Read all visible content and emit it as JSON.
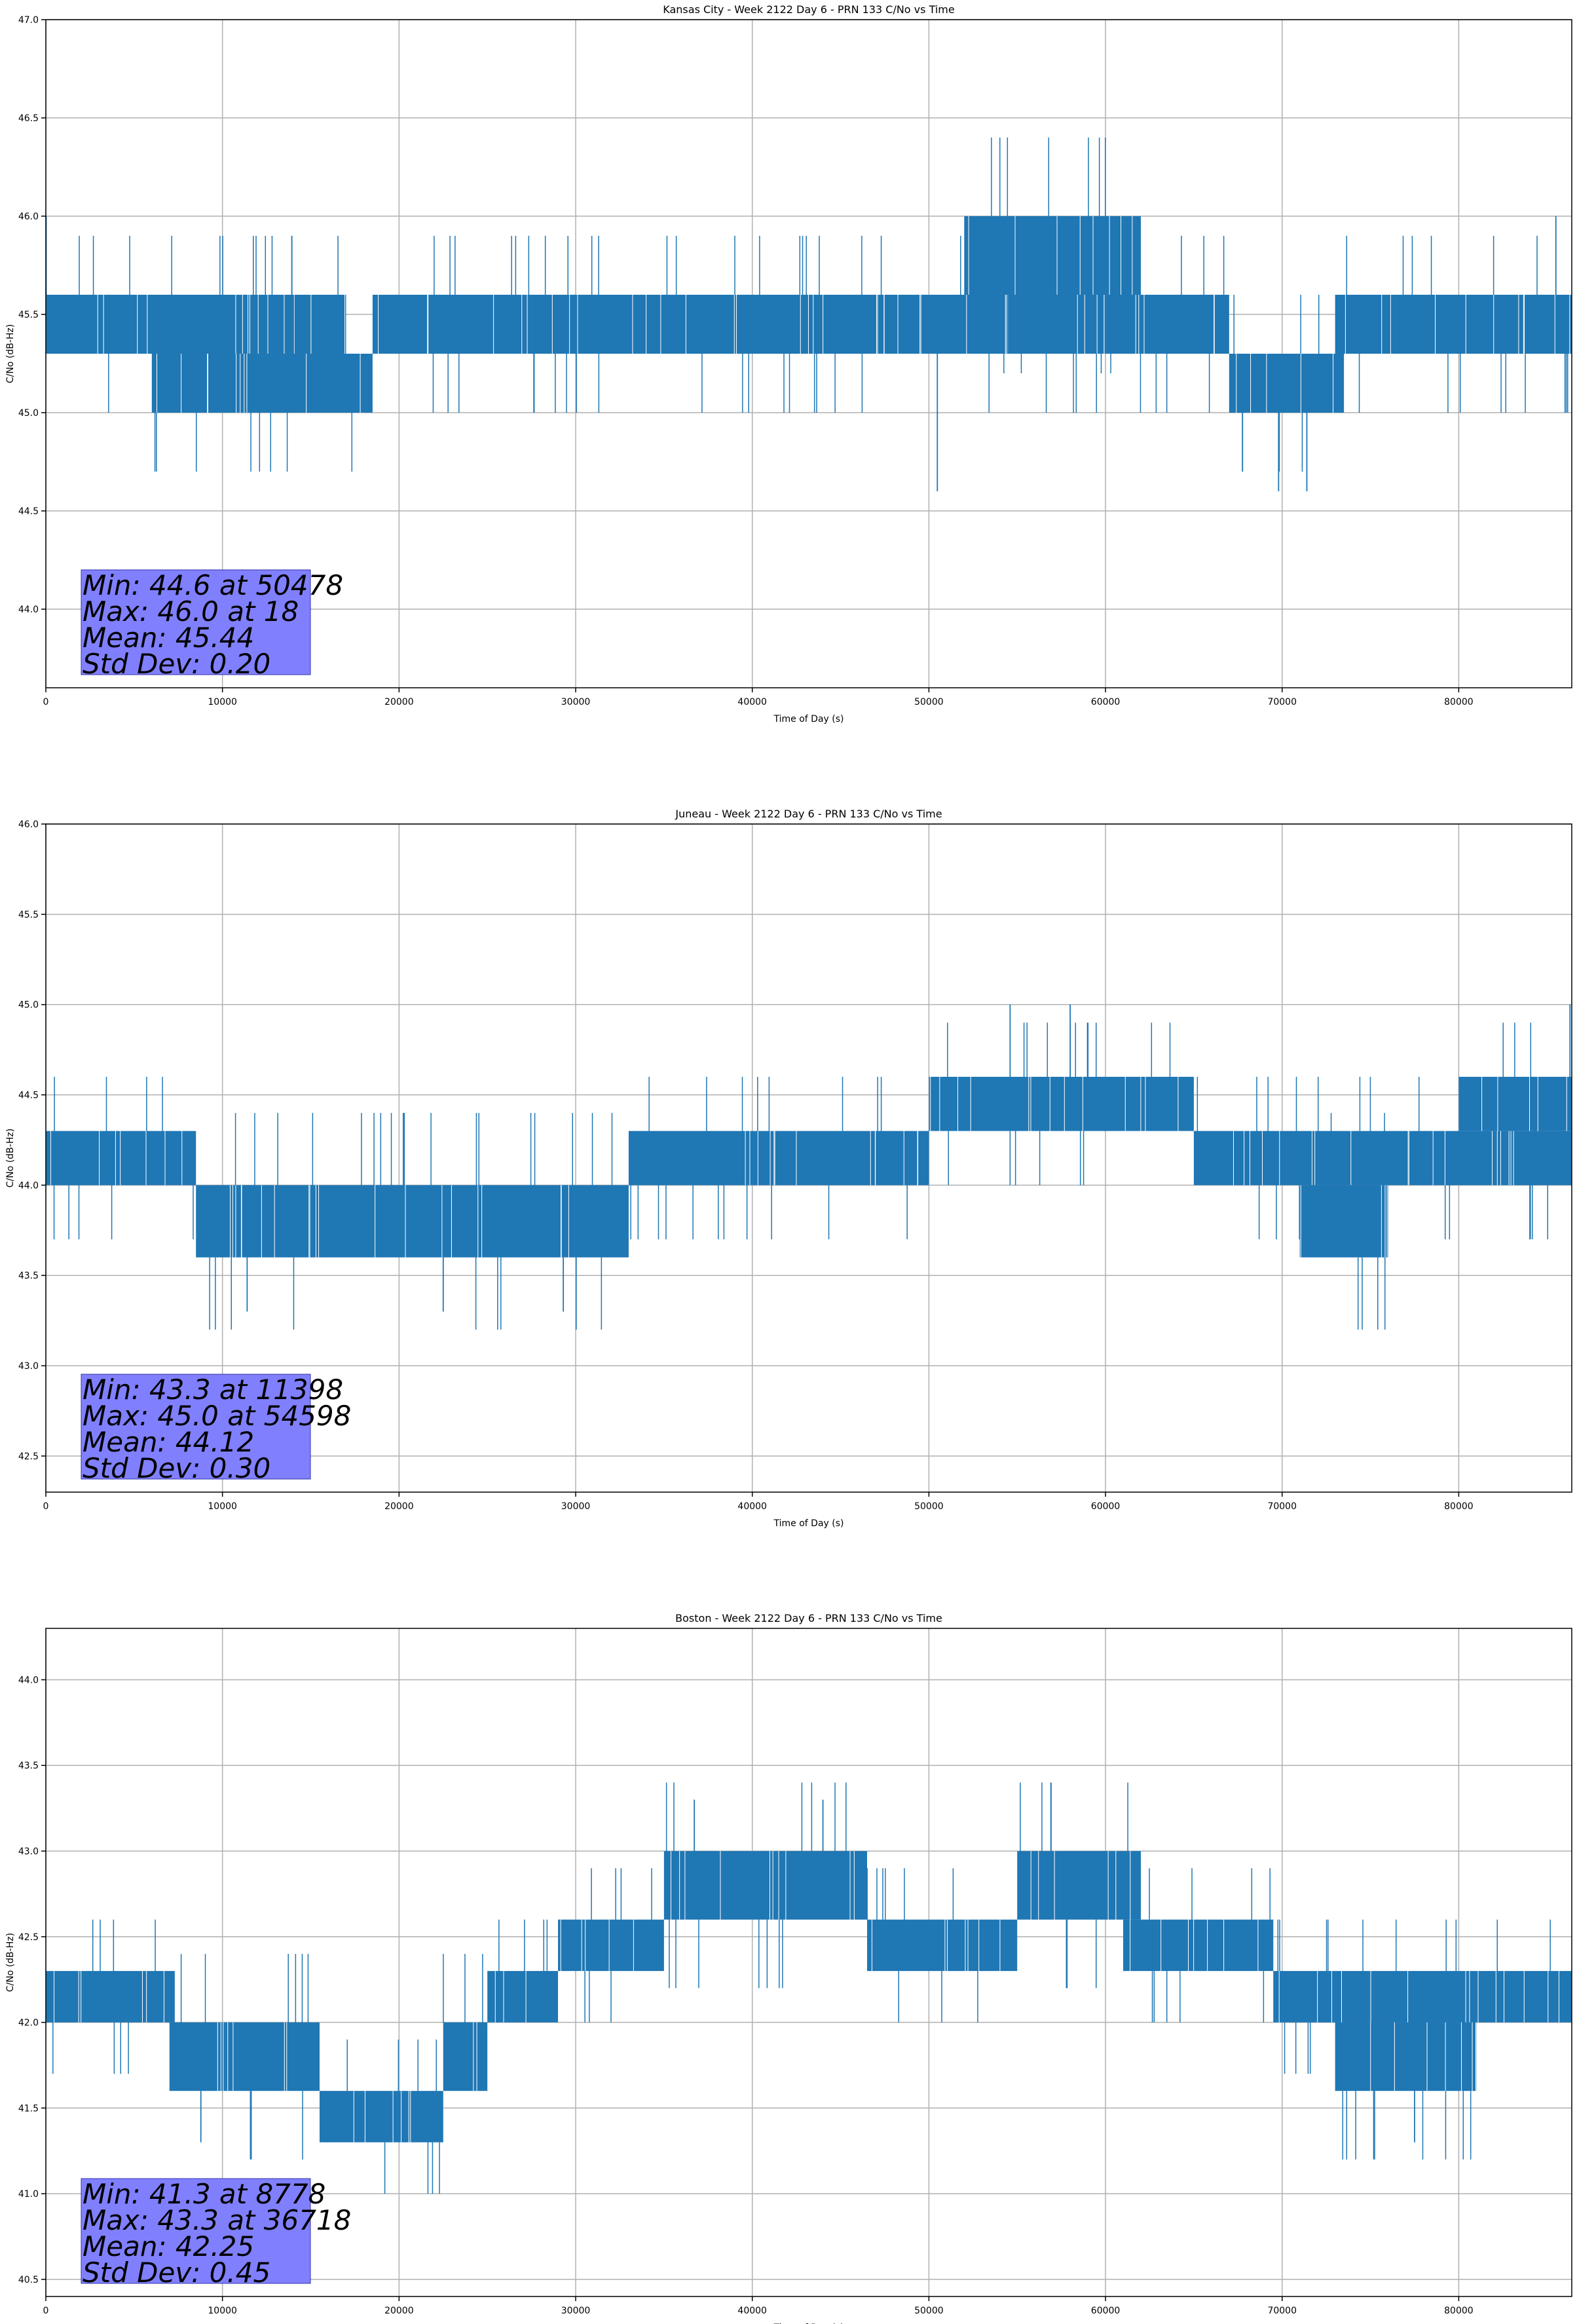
{
  "colors": {
    "series": "#1f77b4",
    "stats_box_fill": "#8080ff",
    "stats_box_edge": "#3333aa",
    "grid": "#b0b0b0"
  },
  "chart_data": [
    {
      "type": "line",
      "title": "Kansas City - Week 2122 Day 6 - PRN 133 C/No vs Time",
      "xlabel": "Time of Day (s)",
      "ylabel": "C/No (dB-Hz)",
      "xlim": [
        0,
        86400
      ],
      "ylim": [
        43.6,
        47.0
      ],
      "xticks": [
        0,
        10000,
        20000,
        30000,
        40000,
        50000,
        60000,
        70000,
        80000
      ],
      "yticks": [
        44.0,
        44.5,
        45.0,
        45.5,
        46.0,
        46.5,
        47.0
      ],
      "grid": true,
      "stats": [
        "Min: 44.6 at 50478",
        "Max: 46.0 at 18",
        "Mean: 45.44",
        "Std Dev: 0.20"
      ],
      "bands": [
        {
          "x0": 0,
          "x1": 17000,
          "lo": 45.3,
          "hi": 45.6
        },
        {
          "x0": 6000,
          "x1": 18500,
          "lo": 45.0,
          "hi": 45.3
        },
        {
          "x0": 18500,
          "x1": 54500,
          "lo": 45.3,
          "hi": 45.6
        },
        {
          "x0": 54500,
          "x1": 67000,
          "lo": 45.3,
          "hi": 45.6
        },
        {
          "x0": 52000,
          "x1": 62000,
          "lo": 45.6,
          "hi": 46.0
        },
        {
          "x0": 67000,
          "x1": 73500,
          "lo": 45.0,
          "hi": 45.3
        },
        {
          "x0": 73000,
          "x1": 86400,
          "lo": 45.3,
          "hi": 45.6
        }
      ],
      "spikes": [
        {
          "x": 50478,
          "y": 44.6
        },
        {
          "x": 69800,
          "y": 44.6
        },
        {
          "x": 71400,
          "y": 44.6
        },
        {
          "x": 18,
          "y": 46.0
        },
        {
          "x": 85500,
          "y": 46.0
        }
      ]
    },
    {
      "type": "line",
      "title": "Juneau - Week 2122 Day 6 - PRN 133 C/No vs Time",
      "xlabel": "Time of Day (s)",
      "ylabel": "C/No (dB-Hz)",
      "xlim": [
        0,
        86400
      ],
      "ylim": [
        42.3,
        46.0
      ],
      "xticks": [
        0,
        10000,
        20000,
        30000,
        40000,
        50000,
        60000,
        70000,
        80000
      ],
      "yticks": [
        42.5,
        43.0,
        43.5,
        44.0,
        44.5,
        45.0,
        45.5,
        46.0
      ],
      "grid": true,
      "stats": [
        "Min: 43.3 at 11398",
        "Max: 45.0 at 54598",
        "Mean: 44.12",
        "Std Dev: 0.30"
      ],
      "bands": [
        {
          "x0": 0,
          "x1": 8500,
          "lo": 44.0,
          "hi": 44.3
        },
        {
          "x0": 8500,
          "x1": 33000,
          "lo": 43.6,
          "hi": 44.0
        },
        {
          "x0": 33000,
          "x1": 50000,
          "lo": 44.0,
          "hi": 44.3
        },
        {
          "x0": 50000,
          "x1": 65000,
          "lo": 44.3,
          "hi": 44.6
        },
        {
          "x0": 65000,
          "x1": 86400,
          "lo": 44.0,
          "hi": 44.3
        },
        {
          "x0": 71000,
          "x1": 76000,
          "lo": 43.6,
          "hi": 44.0
        },
        {
          "x0": 80000,
          "x1": 86400,
          "lo": 44.3,
          "hi": 44.6
        }
      ],
      "spikes": [
        {
          "x": 11398,
          "y": 43.3
        },
        {
          "x": 22500,
          "y": 43.3
        },
        {
          "x": 29300,
          "y": 43.3
        },
        {
          "x": 54598,
          "y": 45.0
        },
        {
          "x": 58000,
          "y": 45.0
        },
        {
          "x": 86300,
          "y": 45.0
        }
      ]
    },
    {
      "type": "line",
      "title": "Boston - Week 2122 Day 6 - PRN 133 C/No vs Time",
      "xlabel": "Time of Day (s)",
      "ylabel": "C/No (dB-Hz)",
      "xlim": [
        0,
        86400
      ],
      "ylim": [
        40.4,
        44.3
      ],
      "xticks": [
        0,
        10000,
        20000,
        30000,
        40000,
        50000,
        60000,
        70000,
        80000
      ],
      "yticks": [
        40.5,
        41.0,
        41.5,
        42.0,
        42.5,
        43.0,
        43.5,
        44.0
      ],
      "grid": true,
      "stats": [
        "Min: 41.3 at 8778",
        "Max: 43.3 at 36718",
        "Mean: 42.25",
        "Std Dev: 0.45"
      ],
      "bands": [
        {
          "x0": 0,
          "x1": 7300,
          "lo": 42.0,
          "hi": 42.3
        },
        {
          "x0": 7000,
          "x1": 15500,
          "lo": 41.6,
          "hi": 42.0
        },
        {
          "x0": 15500,
          "x1": 22500,
          "lo": 41.3,
          "hi": 41.6
        },
        {
          "x0": 22500,
          "x1": 25000,
          "lo": 41.6,
          "hi": 42.0
        },
        {
          "x0": 25000,
          "x1": 29000,
          "lo": 42.0,
          "hi": 42.3
        },
        {
          "x0": 29000,
          "x1": 35000,
          "lo": 42.3,
          "hi": 42.6
        },
        {
          "x0": 35000,
          "x1": 46500,
          "lo": 42.6,
          "hi": 43.0
        },
        {
          "x0": 46500,
          "x1": 55000,
          "lo": 42.3,
          "hi": 42.6
        },
        {
          "x0": 55000,
          "x1": 62000,
          "lo": 42.6,
          "hi": 43.0
        },
        {
          "x0": 61000,
          "x1": 69500,
          "lo": 42.3,
          "hi": 42.6
        },
        {
          "x0": 69500,
          "x1": 86400,
          "lo": 42.0,
          "hi": 42.3
        },
        {
          "x0": 73000,
          "x1": 81000,
          "lo": 41.6,
          "hi": 42.0
        }
      ],
      "spikes": [
        {
          "x": 8778,
          "y": 41.3
        },
        {
          "x": 77500,
          "y": 41.3
        },
        {
          "x": 36718,
          "y": 43.3
        },
        {
          "x": 44000,
          "y": 43.3
        }
      ]
    }
  ]
}
